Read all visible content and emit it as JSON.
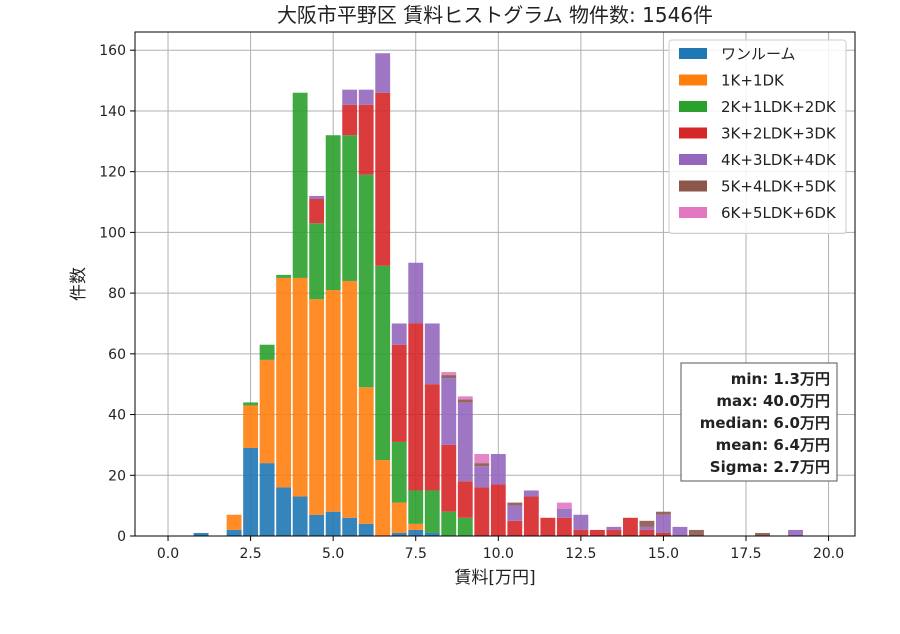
{
  "chart_data": {
    "type": "bar",
    "stacked": true,
    "title": "大阪市平野区 賃料ヒストグラム  物件数: 1546件",
    "xlabel": "賃料[万円]",
    "ylabel": "件数",
    "xlim": [
      -1.0,
      20.8
    ],
    "ylim": [
      0,
      166
    ],
    "xticks": [
      0.0,
      2.5,
      5.0,
      7.5,
      10.0,
      12.5,
      15.0,
      17.5,
      20.0
    ],
    "xtick_labels": [
      "0.0",
      "2.5",
      "5.0",
      "7.5",
      "10.0",
      "12.5",
      "15.0",
      "17.5",
      "20.0"
    ],
    "yticks": [
      0,
      20,
      40,
      60,
      80,
      100,
      120,
      140,
      160
    ],
    "ytick_labels": [
      "0",
      "20",
      "40",
      "60",
      "80",
      "100",
      "120",
      "140",
      "160"
    ],
    "grid": true,
    "legend_position": "top-right",
    "bin_width": 0.5,
    "bins": [
      1.0,
      2.0,
      2.5,
      3.0,
      3.5,
      4.0,
      4.5,
      5.0,
      5.5,
      6.0,
      6.5,
      7.0,
      7.5,
      8.0,
      8.5,
      9.0,
      9.5,
      10.0,
      10.5,
      11.0,
      11.5,
      12.0,
      12.5,
      13.0,
      13.5,
      14.0,
      14.5,
      15.0,
      15.5,
      16.0,
      18.0,
      19.0
    ],
    "series": [
      {
        "name": "ワンルーム",
        "color": "#1f77b4",
        "values": [
          1,
          2,
          29,
          24,
          16,
          13,
          7,
          8,
          6,
          4,
          0,
          1,
          2,
          1,
          0,
          0,
          0,
          0,
          0,
          0,
          0,
          0,
          0,
          0,
          0,
          0,
          0,
          0,
          0,
          0,
          0,
          0
        ]
      },
      {
        "name": "1K+1DK",
        "color": "#ff7f0e",
        "values": [
          0,
          5,
          14,
          34,
          69,
          72,
          71,
          73,
          78,
          45,
          25,
          10,
          2,
          0,
          0,
          0,
          0,
          0,
          0,
          0,
          0,
          0,
          0,
          0,
          0,
          0,
          0,
          0,
          0,
          0,
          0,
          0
        ]
      },
      {
        "name": "2K+1LDK+2DK",
        "color": "#2ca02c",
        "values": [
          0,
          0,
          1,
          5,
          1,
          61,
          25,
          51,
          48,
          70,
          64,
          20,
          11,
          14,
          8,
          6,
          0,
          0,
          0,
          0,
          0,
          0,
          0,
          0,
          0,
          0,
          0,
          0,
          0,
          0,
          0,
          0
        ]
      },
      {
        "name": "3K+2LDK+3DK",
        "color": "#d62728",
        "values": [
          0,
          0,
          0,
          0,
          0,
          0,
          8,
          0,
          10,
          23,
          57,
          32,
          55,
          35,
          22,
          12,
          16,
          17,
          5,
          13,
          6,
          6,
          2,
          2,
          2,
          6,
          2,
          1,
          0,
          0,
          0,
          0
        ]
      },
      {
        "name": "4K+3LDK+4DK",
        "color": "#9467bd",
        "values": [
          0,
          0,
          0,
          0,
          0,
          0,
          1,
          0,
          5,
          5,
          13,
          7,
          20,
          20,
          22,
          26,
          7,
          10,
          5,
          2,
          0,
          3,
          5,
          0,
          1,
          0,
          1,
          6,
          3,
          0,
          0,
          2
        ]
      },
      {
        "name": "5K+4LDK+5DK",
        "color": "#8c564b",
        "values": [
          0,
          0,
          0,
          0,
          0,
          0,
          0,
          0,
          0,
          0,
          0,
          0,
          0,
          0,
          1,
          1,
          1,
          0,
          1,
          0,
          0,
          0,
          0,
          0,
          0,
          0,
          2,
          1,
          0,
          2,
          1,
          0
        ]
      },
      {
        "name": "6K+5LDK+6DK",
        "color": "#e377c2",
        "values": [
          0,
          0,
          0,
          0,
          0,
          0,
          0,
          0,
          0,
          0,
          0,
          0,
          0,
          0,
          1,
          1,
          3,
          0,
          0,
          0,
          0,
          2,
          0,
          0,
          0,
          0,
          0,
          0,
          0,
          0,
          0,
          0
        ]
      }
    ],
    "stats_box": [
      "min: 1.3万円",
      "max: 40.0万円",
      "median: 6.0万円",
      "mean: 6.4万円",
      "Sigma: 2.7万円"
    ]
  }
}
